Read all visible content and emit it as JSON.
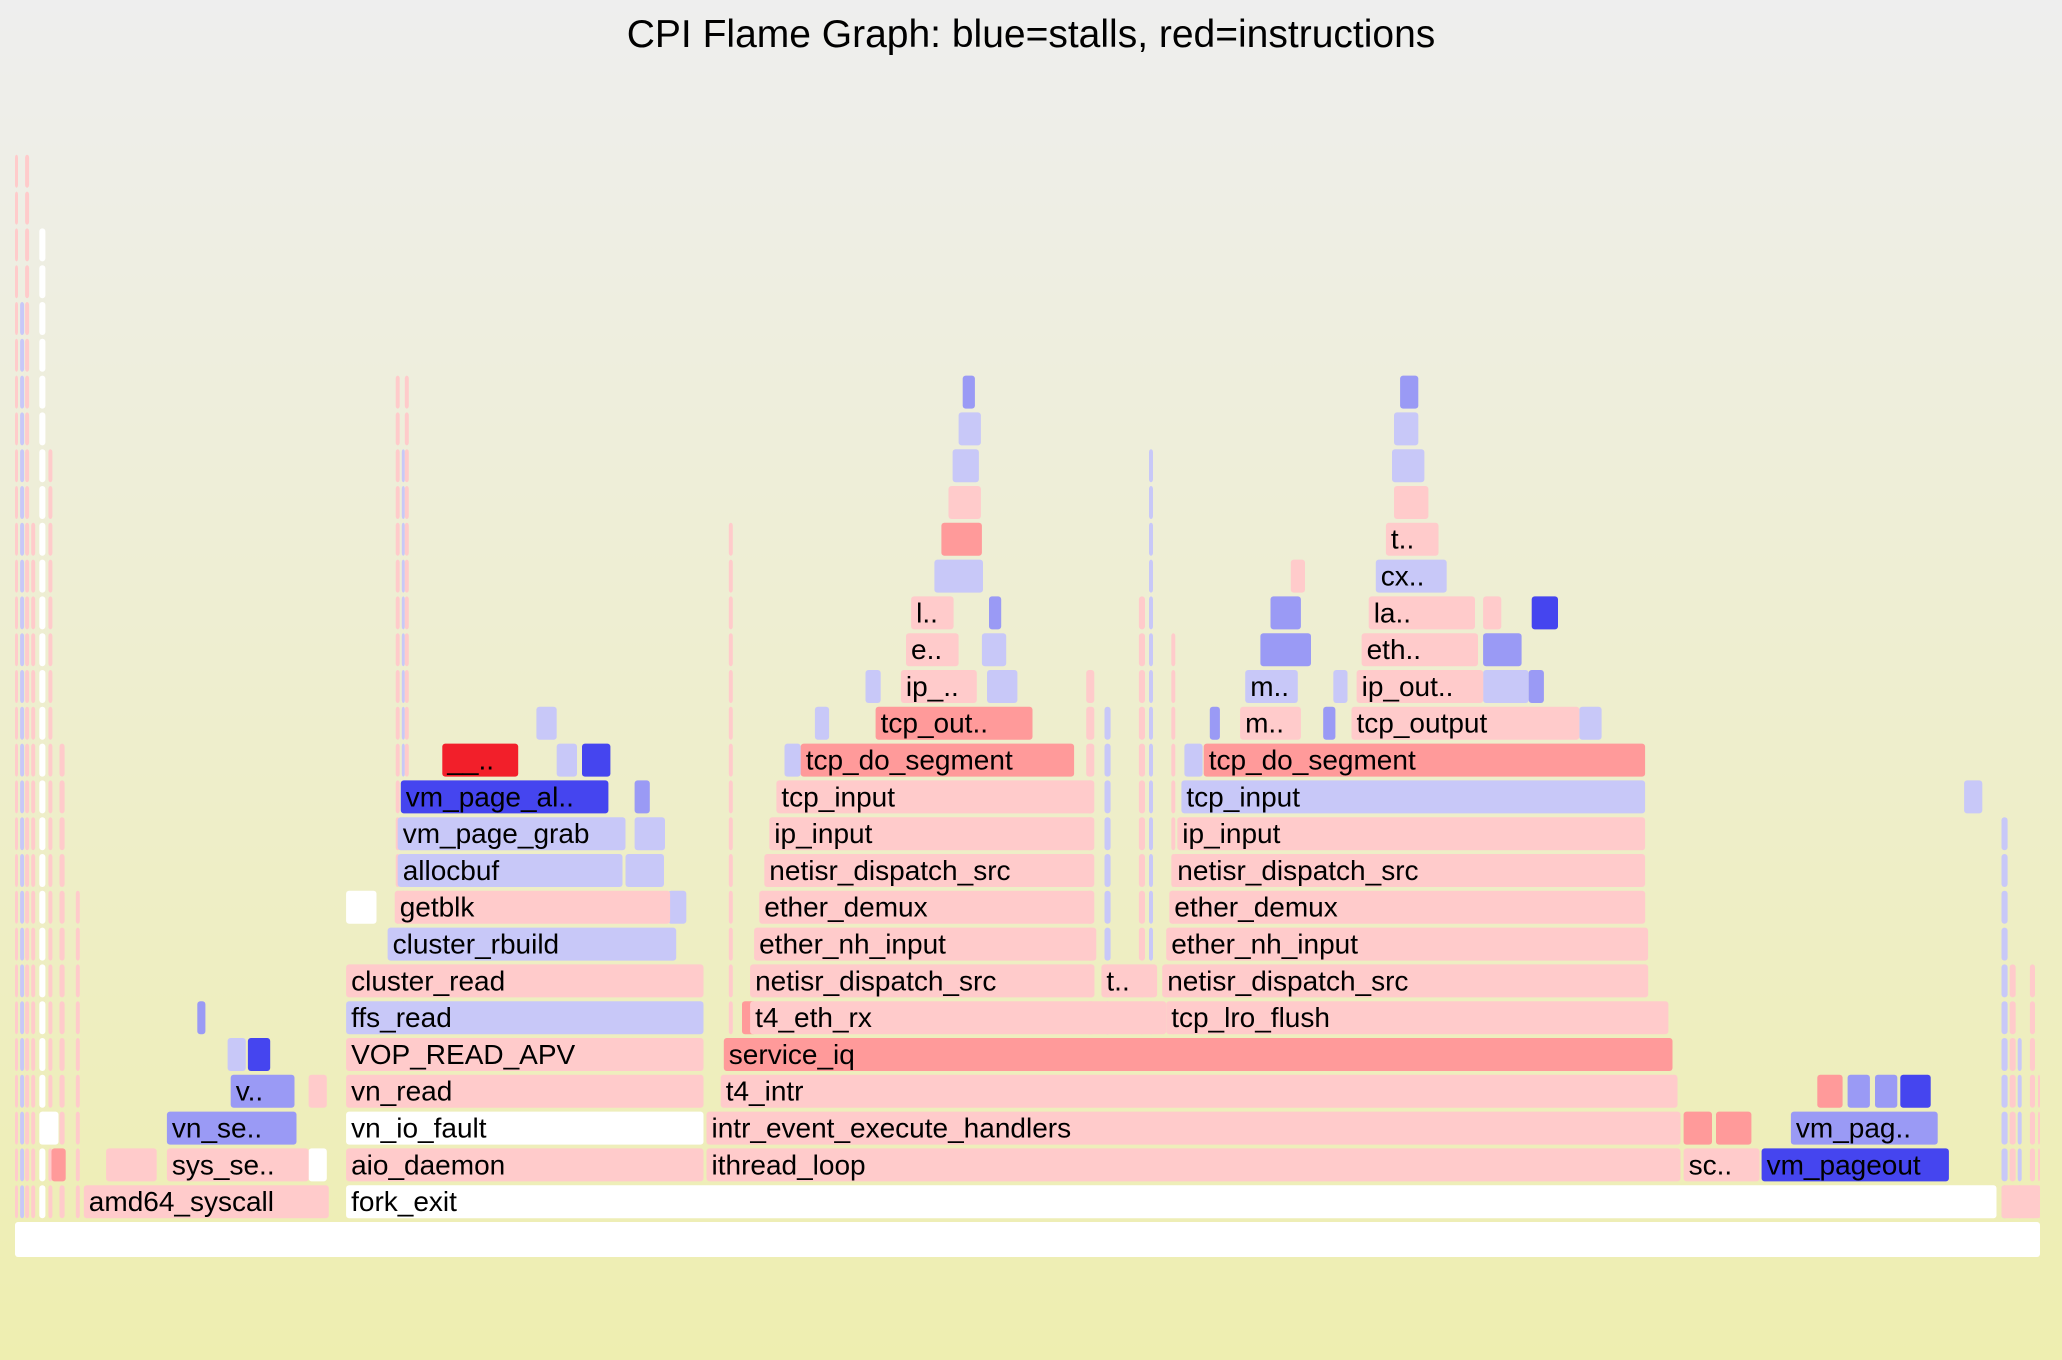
{
  "chart_data": {
    "type": "flamegraph",
    "title": "CPI Flame Graph: blue=stalls, red=instructions",
    "total": 2000,
    "colors": {
      "root": "#ffffff",
      "stall_light": "#c8c8f8",
      "stall_mid": "#9a9af5",
      "stall_dark": "#4545ef",
      "instr_light": "#ffcbcb",
      "instr_mid": "#ff9a9a",
      "instr_dark": "#f21f2a",
      "white": "#ffffff"
    },
    "frames": [
      {
        "depth": 0,
        "start": 0,
        "width": 2000,
        "name": "",
        "color": "root"
      },
      {
        "depth": 1,
        "start": 68,
        "width": 242,
        "name": "amd64_syscall",
        "color": "instr_light"
      },
      {
        "depth": 1,
        "start": 327,
        "width": 1630,
        "name": "fork_exit",
        "color": "white"
      },
      {
        "depth": 1,
        "start": 1962,
        "width": 38,
        "name": "",
        "color": "instr_light"
      },
      {
        "depth": 2,
        "start": 150,
        "width": 140,
        "name": "sys_se..",
        "color": "instr_light"
      },
      {
        "depth": 2,
        "start": 327,
        "width": 353,
        "name": "aio_daemon",
        "color": "instr_light"
      },
      {
        "depth": 2,
        "start": 683,
        "width": 962,
        "name": "ithread_loop",
        "color": "instr_light"
      },
      {
        "depth": 2,
        "start": 1648,
        "width": 75,
        "name": "sc..",
        "color": "instr_light"
      },
      {
        "depth": 2,
        "start": 1725,
        "width": 185,
        "name": "vm_pageout",
        "color": "stall_dark"
      },
      {
        "depth": 2,
        "start": 90,
        "width": 50,
        "name": "",
        "color": "instr_light"
      },
      {
        "depth": 3,
        "start": 150,
        "width": 128,
        "name": "vn_se..",
        "color": "stall_mid"
      },
      {
        "depth": 3,
        "start": 327,
        "width": 353,
        "name": "vn_io_fault",
        "color": "white"
      },
      {
        "depth": 3,
        "start": 683,
        "width": 962,
        "name": "intr_event_execute_handlers",
        "color": "instr_light"
      },
      {
        "depth": 3,
        "start": 1648,
        "width": 28,
        "name": "",
        "color": "instr_mid"
      },
      {
        "depth": 3,
        "start": 1680,
        "width": 35,
        "name": "",
        "color": "instr_mid"
      },
      {
        "depth": 3,
        "start": 1754,
        "width": 145,
        "name": "vm_pag..",
        "color": "stall_mid"
      },
      {
        "depth": 4,
        "start": 213,
        "width": 63,
        "name": "v..",
        "color": "stall_mid"
      },
      {
        "depth": 4,
        "start": 327,
        "width": 353,
        "name": "vn_read",
        "color": "instr_light"
      },
      {
        "depth": 4,
        "start": 697,
        "width": 945,
        "name": "t4_intr",
        "color": "instr_light"
      },
      {
        "depth": 4,
        "start": 1780,
        "width": 25,
        "name": "",
        "color": "instr_mid"
      },
      {
        "depth": 4,
        "start": 1810,
        "width": 22,
        "name": "",
        "color": "stall_mid"
      },
      {
        "depth": 4,
        "start": 1837,
        "width": 22,
        "name": "",
        "color": "stall_mid"
      },
      {
        "depth": 4,
        "start": 1862,
        "width": 30,
        "name": "",
        "color": "stall_dark"
      },
      {
        "depth": 5,
        "start": 327,
        "width": 353,
        "name": "VOP_READ_APV",
        "color": "instr_light"
      },
      {
        "depth": 5,
        "start": 700,
        "width": 937,
        "name": "service_iq",
        "color": "instr_mid"
      },
      {
        "depth": 5,
        "start": 230,
        "width": 22,
        "name": "",
        "color": "stall_dark"
      },
      {
        "depth": 6,
        "start": 327,
        "width": 353,
        "name": "ffs_read",
        "color": "stall_light"
      },
      {
        "depth": 6,
        "start": 726,
        "width": 411,
        "name": "t4_eth_rx",
        "color": "instr_light"
      },
      {
        "depth": 6,
        "start": 1137,
        "width": 496,
        "name": "tcp_lro_flush",
        "color": "instr_light"
      },
      {
        "depth": 7,
        "start": 327,
        "width": 353,
        "name": "cluster_read",
        "color": "instr_light"
      },
      {
        "depth": 7,
        "start": 726,
        "width": 340,
        "name": "netisr_dispatch_src",
        "color": "instr_light"
      },
      {
        "depth": 7,
        "start": 1073,
        "width": 55,
        "name": "t..",
        "color": "instr_light"
      },
      {
        "depth": 7,
        "start": 1133,
        "width": 480,
        "name": "netisr_dispatch_src",
        "color": "instr_light"
      },
      {
        "depth": 8,
        "start": 368,
        "width": 285,
        "name": "cluster_rbuild",
        "color": "stall_light"
      },
      {
        "depth": 8,
        "start": 730,
        "width": 338,
        "name": "ether_nh_input",
        "color": "instr_light"
      },
      {
        "depth": 8,
        "start": 1137,
        "width": 476,
        "name": "ether_nh_input",
        "color": "instr_light"
      },
      {
        "depth": 9,
        "start": 375,
        "width": 272,
        "name": "getblk",
        "color": "instr_light"
      },
      {
        "depth": 9,
        "start": 735,
        "width": 330,
        "name": "ether_demux",
        "color": "instr_light"
      },
      {
        "depth": 9,
        "start": 1140,
        "width": 470,
        "name": "ether_demux",
        "color": "instr_light"
      },
      {
        "depth": 10,
        "start": 378,
        "width": 222,
        "name": "allocbuf",
        "color": "stall_light"
      },
      {
        "depth": 10,
        "start": 740,
        "width": 325,
        "name": "netisr_dispatch_src",
        "color": "instr_light"
      },
      {
        "depth": 10,
        "start": 1143,
        "width": 467,
        "name": "netisr_dispatch_src",
        "color": "instr_light"
      },
      {
        "depth": 11,
        "start": 378,
        "width": 225,
        "name": "vm_page_grab",
        "color": "stall_light"
      },
      {
        "depth": 11,
        "start": 745,
        "width": 320,
        "name": "ip_input",
        "color": "instr_light"
      },
      {
        "depth": 11,
        "start": 1148,
        "width": 462,
        "name": "ip_input",
        "color": "instr_light"
      },
      {
        "depth": 12,
        "start": 381,
        "width": 205,
        "name": "vm_page_al..",
        "color": "stall_dark"
      },
      {
        "depth": 12,
        "start": 752,
        "width": 313,
        "name": "tcp_input",
        "color": "instr_light"
      },
      {
        "depth": 12,
        "start": 1152,
        "width": 458,
        "name": "tcp_input",
        "color": "stall_light"
      },
      {
        "depth": 13,
        "start": 422,
        "width": 75,
        "name": "__..",
        "color": "instr_dark"
      },
      {
        "depth": 13,
        "start": 776,
        "width": 270,
        "name": "tcp_do_segment",
        "color": "instr_mid"
      },
      {
        "depth": 13,
        "start": 1174,
        "width": 436,
        "name": "tcp_do_segment",
        "color": "instr_mid"
      },
      {
        "depth": 14,
        "start": 850,
        "width": 155,
        "name": "tcp_out..",
        "color": "instr_mid"
      },
      {
        "depth": 14,
        "start": 1210,
        "width": 60,
        "name": "m..",
        "color": "instr_light"
      },
      {
        "depth": 14,
        "start": 1320,
        "width": 225,
        "name": "tcp_output",
        "color": "instr_light"
      },
      {
        "depth": 15,
        "start": 875,
        "width": 75,
        "name": "ip_..",
        "color": "instr_light"
      },
      {
        "depth": 15,
        "start": 1215,
        "width": 52,
        "name": "m..",
        "color": "stall_light"
      },
      {
        "depth": 15,
        "start": 1325,
        "width": 125,
        "name": "ip_out..",
        "color": "instr_light"
      },
      {
        "depth": 16,
        "start": 880,
        "width": 52,
        "name": "e..",
        "color": "instr_light"
      },
      {
        "depth": 16,
        "start": 1330,
        "width": 115,
        "name": "eth..",
        "color": "instr_light"
      },
      {
        "depth": 17,
        "start": 885,
        "width": 42,
        "name": "l..",
        "color": "instr_light"
      },
      {
        "depth": 17,
        "start": 1337,
        "width": 105,
        "name": "la..",
        "color": "instr_light"
      },
      {
        "depth": 18,
        "start": 1344,
        "width": 70,
        "name": "cx..",
        "color": "stall_light"
      },
      {
        "depth": 19,
        "start": 1354,
        "width": 52,
        "name": "t..",
        "color": "instr_light"
      }
    ],
    "slivers": [
      {
        "depth": 2,
        "start": 36,
        "width": 14,
        "color": "instr_mid"
      },
      {
        "depth": 2,
        "start": 290,
        "width": 18,
        "color": "white"
      },
      {
        "depth": 3,
        "start": 25,
        "width": 18,
        "color": "white"
      },
      {
        "depth": 4,
        "start": 290,
        "width": 18,
        "color": "instr_light"
      },
      {
        "depth": 5,
        "start": 210,
        "width": 18,
        "color": "stall_light"
      },
      {
        "depth": 6,
        "start": 718,
        "width": 14,
        "color": "instr_mid"
      },
      {
        "depth": 6,
        "start": 180,
        "width": 8,
        "color": "stall_mid"
      },
      {
        "depth": 9,
        "start": 327,
        "width": 30,
        "color": "white"
      },
      {
        "depth": 9,
        "start": 645,
        "width": 18,
        "color": "stall_light"
      },
      {
        "depth": 10,
        "start": 603,
        "width": 38,
        "color": "stall_light"
      },
      {
        "depth": 11,
        "start": 612,
        "width": 30,
        "color": "stall_light"
      },
      {
        "depth": 12,
        "start": 612,
        "width": 15,
        "color": "stall_mid"
      },
      {
        "depth": 12,
        "start": 1925,
        "width": 18,
        "color": "stall_light"
      },
      {
        "depth": 13,
        "start": 535,
        "width": 20,
        "color": "stall_light"
      },
      {
        "depth": 13,
        "start": 560,
        "width": 28,
        "color": "stall_dark"
      },
      {
        "depth": 13,
        "start": 760,
        "width": 16,
        "color": "stall_light"
      },
      {
        "depth": 13,
        "start": 1155,
        "width": 18,
        "color": "stall_light"
      },
      {
        "depth": 14,
        "start": 515,
        "width": 20,
        "color": "stall_light"
      },
      {
        "depth": 14,
        "start": 790,
        "width": 14,
        "color": "stall_light"
      },
      {
        "depth": 14,
        "start": 1180,
        "width": 10,
        "color": "stall_mid"
      },
      {
        "depth": 14,
        "start": 1292,
        "width": 12,
        "color": "stall_mid"
      },
      {
        "depth": 14,
        "start": 1545,
        "width": 22,
        "color": "stall_light"
      },
      {
        "depth": 15,
        "start": 840,
        "width": 15,
        "color": "stall_light"
      },
      {
        "depth": 15,
        "start": 960,
        "width": 30,
        "color": "stall_light"
      },
      {
        "depth": 15,
        "start": 1302,
        "width": 14,
        "color": "stall_light"
      },
      {
        "depth": 15,
        "start": 1450,
        "width": 45,
        "color": "stall_light"
      },
      {
        "depth": 15,
        "start": 1495,
        "width": 15,
        "color": "stall_mid"
      },
      {
        "depth": 16,
        "start": 955,
        "width": 24,
        "color": "stall_light"
      },
      {
        "depth": 16,
        "start": 1230,
        "width": 50,
        "color": "stall_mid"
      },
      {
        "depth": 16,
        "start": 1450,
        "width": 38,
        "color": "stall_mid"
      },
      {
        "depth": 17,
        "start": 962,
        "width": 12,
        "color": "stall_mid"
      },
      {
        "depth": 17,
        "start": 1240,
        "width": 30,
        "color": "stall_mid"
      },
      {
        "depth": 17,
        "start": 1450,
        "width": 18,
        "color": "instr_light"
      },
      {
        "depth": 17,
        "start": 1498,
        "width": 26,
        "color": "stall_dark"
      },
      {
        "depth": 18,
        "start": 908,
        "width": 48,
        "color": "stall_light"
      },
      {
        "depth": 18,
        "start": 1260,
        "width": 14,
        "color": "instr_light"
      },
      {
        "depth": 19,
        "start": 915,
        "width": 40,
        "color": "instr_mid"
      },
      {
        "depth": 20,
        "start": 922,
        "width": 32,
        "color": "instr_light"
      },
      {
        "depth": 20,
        "start": 1362,
        "width": 34,
        "color": "instr_light"
      },
      {
        "depth": 21,
        "start": 926,
        "width": 26,
        "color": "stall_light"
      },
      {
        "depth": 21,
        "start": 1360,
        "width": 32,
        "color": "stall_light"
      },
      {
        "depth": 22,
        "start": 932,
        "width": 22,
        "color": "stall_light"
      },
      {
        "depth": 22,
        "start": 1362,
        "width": 24,
        "color": "stall_light"
      },
      {
        "depth": 23,
        "start": 936,
        "width": 12,
        "color": "stall_mid"
      },
      {
        "depth": 23,
        "start": 1368,
        "width": 18,
        "color": "stall_mid"
      }
    ]
  }
}
